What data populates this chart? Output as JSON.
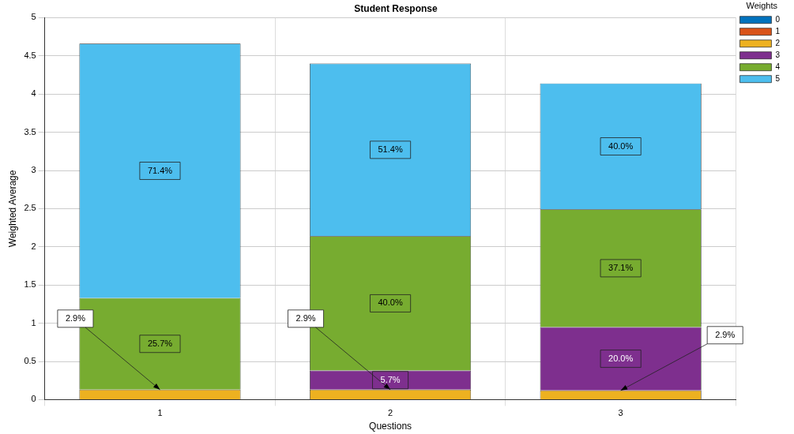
{
  "chart_data": {
    "type": "bar",
    "title": "Student Response",
    "xlabel": "Questions",
    "ylabel": "Weighted Average",
    "legend_title": "Weights",
    "categories": [
      "1",
      "2",
      "3"
    ],
    "stacked": true,
    "ylim": [
      0,
      5
    ],
    "yticks": [
      0,
      0.5,
      1,
      1.5,
      2,
      2.5,
      3,
      3.5,
      4,
      4.5,
      5
    ],
    "grid": true,
    "legend": "top right",
    "series": [
      {
        "name": "0",
        "color": "#0072bd",
        "values": [
          0,
          0,
          0
        ]
      },
      {
        "name": "1",
        "color": "#d95319",
        "values": [
          0,
          0,
          0
        ]
      },
      {
        "name": "2",
        "color": "#edb120",
        "values": [
          0.13,
          0.13,
          0.12
        ]
      },
      {
        "name": "3",
        "color": "#7e2f8e",
        "values": [
          0,
          0.25,
          0.83
        ]
      },
      {
        "name": "4",
        "color": "#77ac30",
        "values": [
          1.2,
          1.76,
          1.54
        ]
      },
      {
        "name": "5",
        "color": "#4dbeee",
        "values": [
          3.33,
          2.26,
          1.65
        ]
      }
    ],
    "annotations": [
      {
        "text": "2.9%",
        "x": "1",
        "y": 0.13
      },
      "25.7%",
      "71.4%",
      {
        "text": "2.9%",
        "x": "2",
        "y": 0.13
      },
      "5.7%",
      "40.0%",
      "51.4%",
      {
        "text": "2.9%",
        "x": "3",
        "y": 0.12
      },
      "20.0%",
      "37.1%",
      "40.0%"
    ]
  }
}
